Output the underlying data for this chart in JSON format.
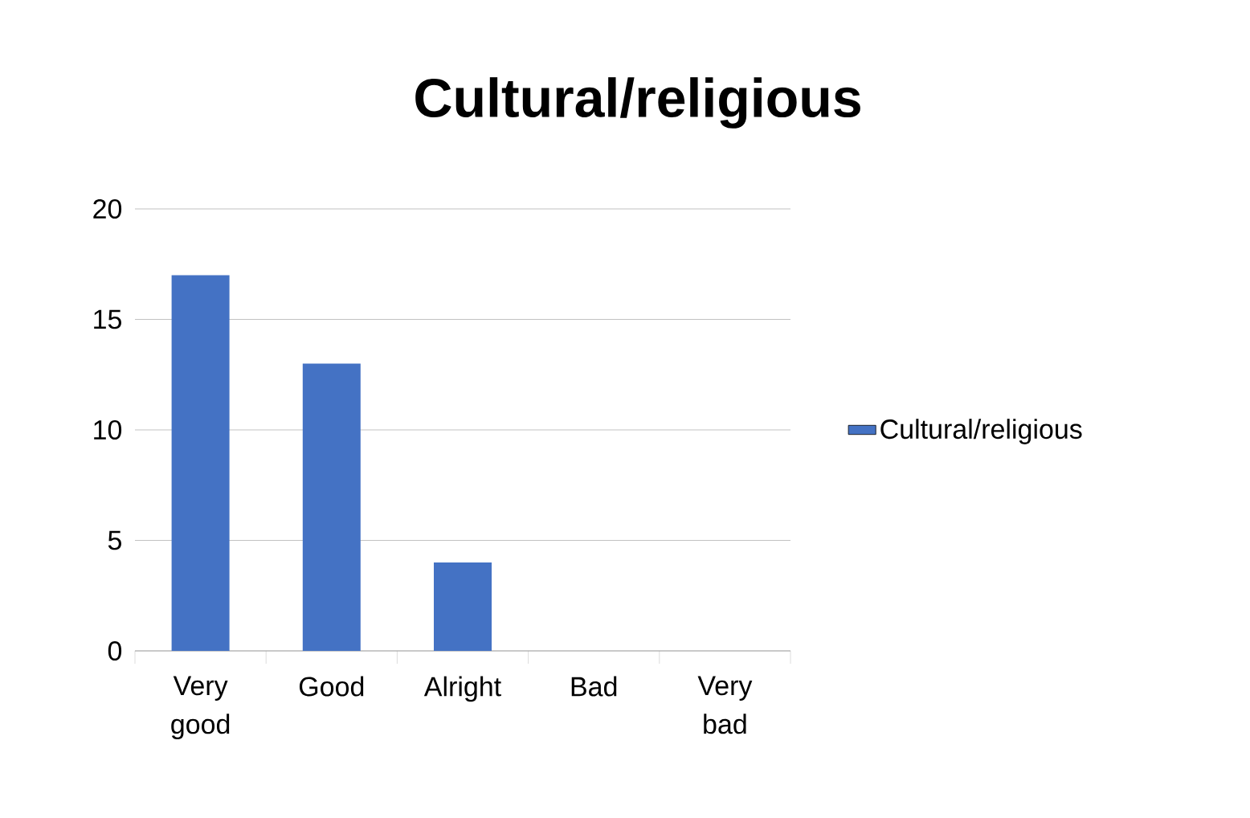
{
  "chart_data": {
    "type": "bar",
    "title": "Cultural/religious",
    "categories": [
      "Very good",
      "Good",
      "Alright",
      "Bad",
      "Very bad"
    ],
    "series": [
      {
        "name": "Cultural/religious",
        "color": "#4472c4",
        "values": [
          17,
          13,
          4,
          0,
          0
        ]
      }
    ],
    "ylim": [
      0,
      20
    ],
    "yticks": [
      0,
      5,
      10,
      15,
      20
    ],
    "grid": "y",
    "legend": "right"
  }
}
